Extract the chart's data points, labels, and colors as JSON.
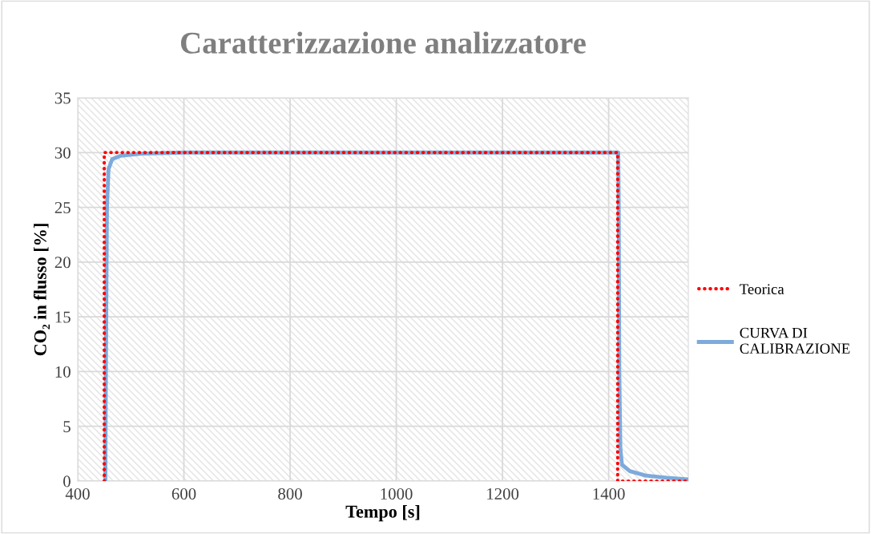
{
  "chart_data": {
    "type": "line",
    "title": "Caratterizzazione analizzatore",
    "xlabel": "Tempo [s]",
    "ylabel": "CO₂ in flusso [%]",
    "xlim": [
      400,
      1550
    ],
    "xticks": [
      400,
      600,
      800,
      1000,
      1200,
      1400
    ],
    "ylim": [
      0,
      35
    ],
    "yticks": [
      0,
      5,
      10,
      15,
      20,
      25,
      30,
      35
    ],
    "grid": true,
    "legend": "right",
    "marker": "none",
    "series": [
      {
        "name": "Teorica",
        "color": "#ff0000",
        "line_style": "dotted",
        "x": [
          450,
          450,
          1417,
          1417,
          1550
        ],
        "values": [
          0,
          30,
          30,
          0,
          0
        ]
      },
      {
        "name": "CURVA DI\nCALIBRAZIONE",
        "color": "#7eaadb",
        "line_style": "solid",
        "x": [
          452,
          453,
          455,
          458,
          465,
          480,
          520,
          600,
          1418,
          1419,
          1420,
          1422,
          1425,
          1440,
          1470,
          1510,
          1550
        ],
        "values": [
          0,
          10,
          25,
          28.5,
          29.4,
          29.7,
          29.9,
          30,
          30,
          25,
          10,
          3,
          1.5,
          0.9,
          0.5,
          0.3,
          0.15
        ]
      }
    ]
  }
}
